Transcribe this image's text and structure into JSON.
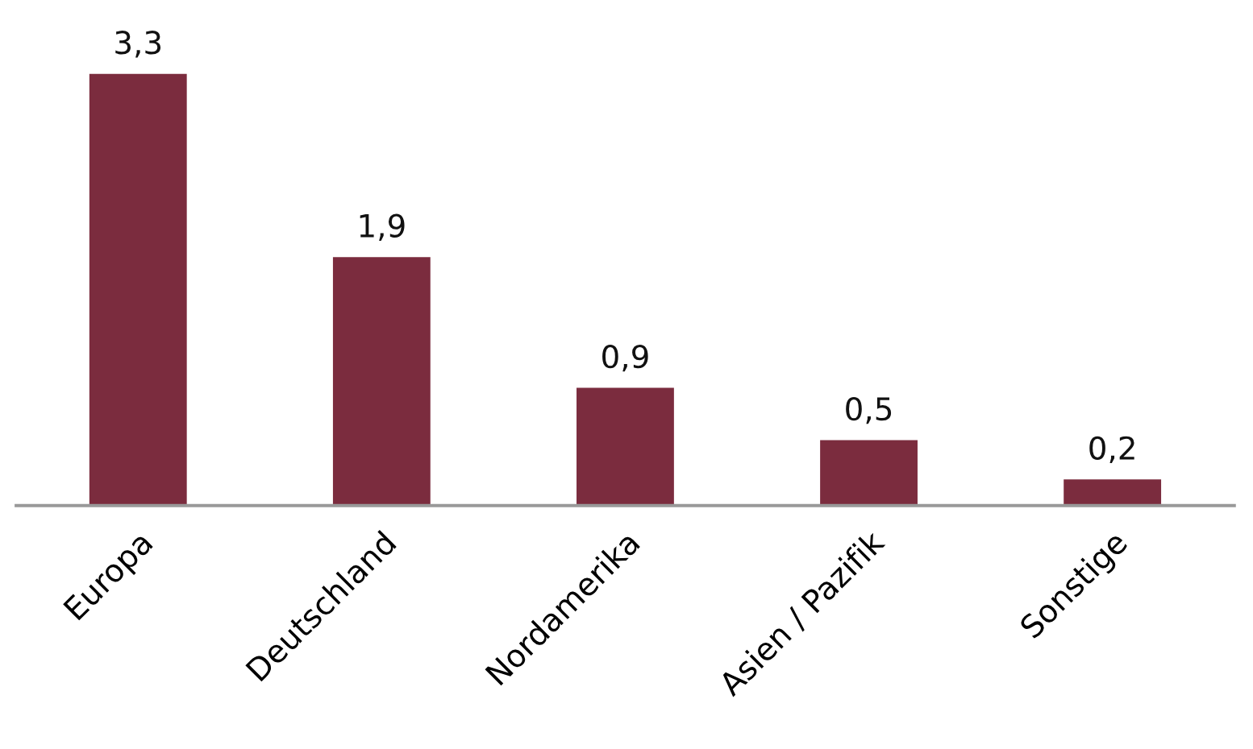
{
  "chart_data": {
    "type": "bar",
    "categories": [
      "Europa",
      "Deutschland",
      "Nordamerika",
      "Asien / Pazifik",
      "Sonstige"
    ],
    "values": [
      3.3,
      1.9,
      0.9,
      0.5,
      0.2
    ],
    "value_labels": [
      "3,3",
      "1,9",
      "0,9",
      "0,5",
      "0,2"
    ],
    "color": "#7b2c3e"
  }
}
